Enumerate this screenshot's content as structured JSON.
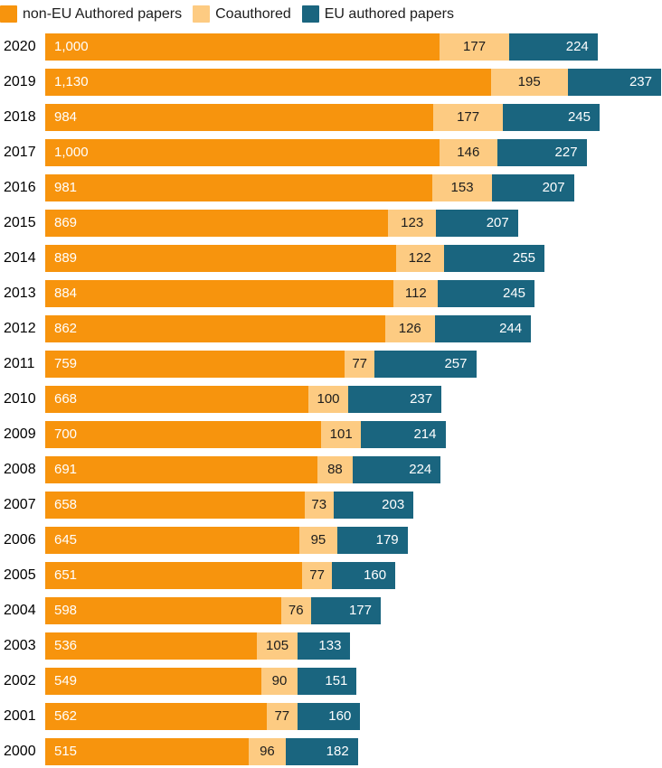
{
  "colors": {
    "non_eu": "#F7940D",
    "coauthored": "#FDCB82",
    "eu": "#1A657F",
    "text_dark": "#1d1d1d",
    "text_light": "#ffffff",
    "background": "#ffffff"
  },
  "legend": {
    "items": [
      {
        "label": "non-EU Authored papers",
        "color_key": "non_eu"
      },
      {
        "label": "Coauthored",
        "color_key": "coauthored"
      },
      {
        "label": "EU authored papers",
        "color_key": "eu"
      }
    ]
  },
  "chart_data": {
    "type": "bar",
    "orientation": "horizontal",
    "stacked": true,
    "title": "",
    "xlabel": "",
    "ylabel": "",
    "legend_position": "top-left",
    "value_labels": "inside",
    "grid": false,
    "xlim": [
      0,
      1562
    ],
    "categories": [
      "2020",
      "2019",
      "2018",
      "2017",
      "2016",
      "2015",
      "2014",
      "2013",
      "2012",
      "2011",
      "2010",
      "2009",
      "2008",
      "2007",
      "2006",
      "2005",
      "2004",
      "2003",
      "2002",
      "2001",
      "2000"
    ],
    "series": [
      {
        "name": "non-EU Authored papers",
        "color_key": "non_eu",
        "values": [
          1000,
          1130,
          984,
          1000,
          981,
          869,
          889,
          884,
          862,
          759,
          668,
          700,
          691,
          658,
          645,
          651,
          598,
          536,
          549,
          562,
          515
        ]
      },
      {
        "name": "Coauthored",
        "color_key": "coauthored",
        "values": [
          177,
          195,
          177,
          146,
          153,
          123,
          122,
          112,
          126,
          77,
          100,
          101,
          88,
          73,
          95,
          77,
          76,
          105,
          90,
          77,
          96
        ]
      },
      {
        "name": "EU authored papers",
        "color_key": "eu",
        "values": [
          224,
          237,
          245,
          227,
          207,
          207,
          255,
          245,
          244,
          257,
          237,
          214,
          224,
          203,
          179,
          160,
          177,
          133,
          151,
          160,
          182
        ]
      }
    ]
  }
}
